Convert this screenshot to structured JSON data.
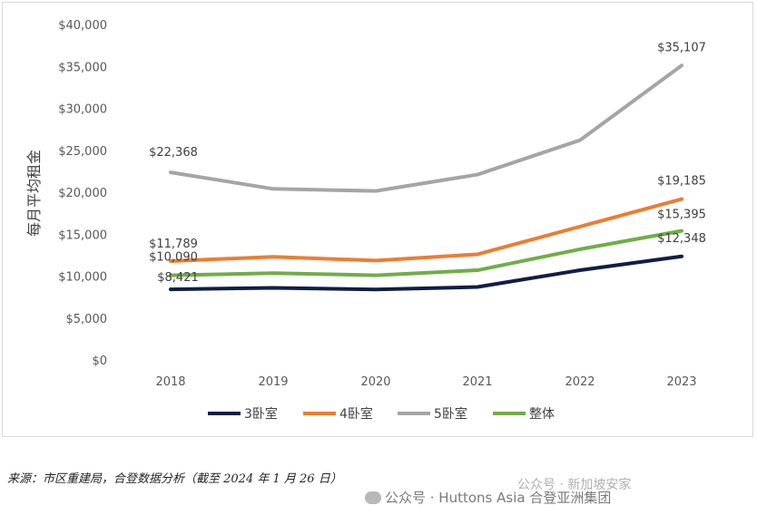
{
  "chart_data": {
    "type": "line",
    "categories": [
      "2018",
      "2019",
      "2020",
      "2021",
      "2022",
      "2023"
    ],
    "ylabel": "每月平均租金",
    "ylim": [
      0,
      40000
    ],
    "yticks": [
      "$0",
      "$5,000",
      "$10,000",
      "$15,000",
      "$20,000",
      "$25,000",
      "$30,000",
      "$35,000",
      "$40,000"
    ],
    "grid": false,
    "legend_position": "bottom",
    "series": [
      {
        "name": "3卧室",
        "color": "#0e1f45",
        "values": [
          8421,
          8600,
          8400,
          8700,
          10700,
          12348
        ],
        "labels": {
          "0": "$8,421",
          "5": "$12,348"
        }
      },
      {
        "name": "4卧室",
        "color": "#ed7d31",
        "values": [
          11789,
          12300,
          11850,
          12600,
          15900,
          19185
        ],
        "labels": {
          "0": "$11,789",
          "5": "$19,185"
        }
      },
      {
        "name": "5卧室",
        "color": "#a5a5a5",
        "values": [
          22368,
          20400,
          20150,
          22100,
          26200,
          35107
        ],
        "labels": {
          "0": "$22,368",
          "5": "$35,107"
        }
      },
      {
        "name": "整体",
        "color": "#70ad47",
        "values": [
          10090,
          10350,
          10100,
          10700,
          13200,
          15395
        ],
        "labels": {
          "0": "$10,090",
          "5": "$15,395"
        }
      }
    ]
  },
  "footer": {
    "source": "来源：市区重建局，合登数据分析（截至 2024 年 1 月 26 日）",
    "watermark": "公众号 · Huttons Asia 合登亚洲集团",
    "watermark2": "公众号 · 新加坡安家"
  }
}
